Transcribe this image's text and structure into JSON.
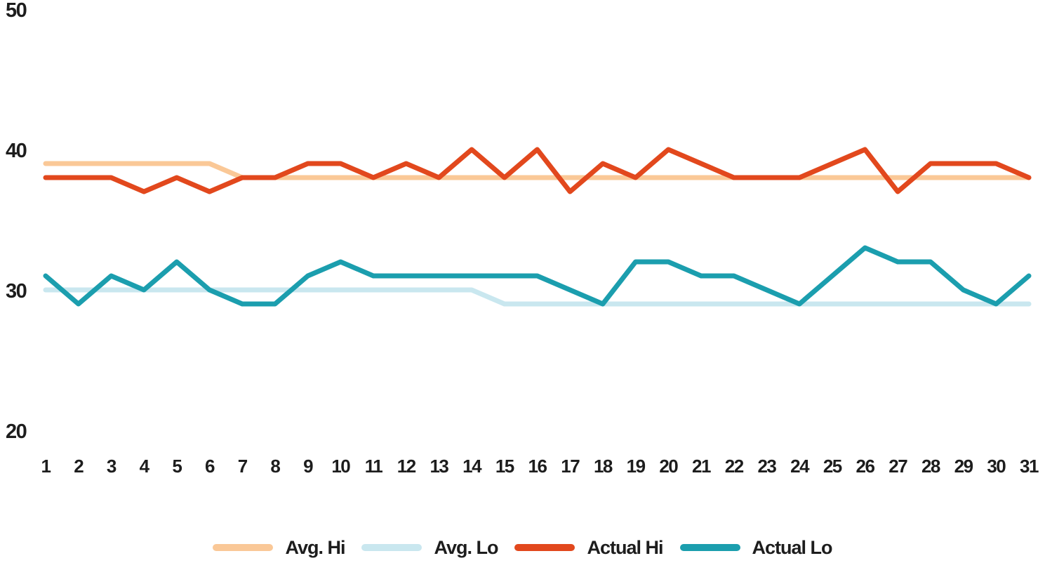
{
  "chart_data": {
    "type": "line",
    "title": "",
    "xlabel": "",
    "ylabel": "",
    "grid": false,
    "legend_position": "bottom",
    "x": [
      1,
      2,
      3,
      4,
      5,
      6,
      7,
      8,
      9,
      10,
      11,
      12,
      13,
      14,
      15,
      16,
      17,
      18,
      19,
      20,
      21,
      22,
      23,
      24,
      25,
      26,
      27,
      28,
      29,
      30,
      31
    ],
    "y_ticks": [
      20,
      30,
      40,
      50
    ],
    "ylim": [
      20,
      50
    ],
    "series": [
      {
        "name": "Avg. Hi",
        "color": "#FAC897",
        "values": [
          39,
          39,
          39,
          39,
          39,
          39,
          38,
          38,
          38,
          38,
          38,
          38,
          38,
          38,
          38,
          38,
          38,
          38,
          38,
          38,
          38,
          38,
          38,
          38,
          38,
          38,
          38,
          38,
          38,
          38,
          38
        ]
      },
      {
        "name": "Avg. Lo",
        "color": "#C9E7EF",
        "values": [
          30,
          30,
          30,
          30,
          30,
          30,
          30,
          30,
          30,
          30,
          30,
          30,
          30,
          30,
          29,
          29,
          29,
          29,
          29,
          29,
          29,
          29,
          29,
          29,
          29,
          29,
          29,
          29,
          29,
          29,
          29
        ]
      },
      {
        "name": "Actual Hi",
        "color": "#E2481D",
        "values": [
          38,
          38,
          38,
          37,
          38,
          37,
          38,
          38,
          39,
          39,
          38,
          39,
          38,
          40,
          38,
          40,
          37,
          39,
          38,
          40,
          39,
          38,
          38,
          38,
          39,
          40,
          37,
          39,
          39,
          39,
          38
        ]
      },
      {
        "name": "Actual Lo",
        "color": "#1B9EAE",
        "values": [
          31,
          29,
          31,
          30,
          32,
          30,
          29,
          29,
          31,
          32,
          31,
          31,
          31,
          31,
          31,
          31,
          30,
          29,
          32,
          32,
          31,
          31,
          30,
          29,
          31,
          33,
          32,
          32,
          30,
          29,
          31
        ]
      }
    ]
  },
  "axes": {
    "y_tick_labels": [
      "50",
      "40",
      "30",
      "20"
    ],
    "x_tick_labels": [
      "1",
      "2",
      "3",
      "4",
      "5",
      "6",
      "7",
      "8",
      "9",
      "10",
      "11",
      "12",
      "13",
      "14",
      "15",
      "16",
      "17",
      "18",
      "19",
      "20",
      "21",
      "22",
      "23",
      "24",
      "25",
      "26",
      "27",
      "28",
      "29",
      "30",
      "31"
    ]
  },
  "legend": {
    "labels": [
      "Avg. Hi",
      "Avg. Lo",
      "Actual Hi",
      "Actual Lo"
    ]
  }
}
